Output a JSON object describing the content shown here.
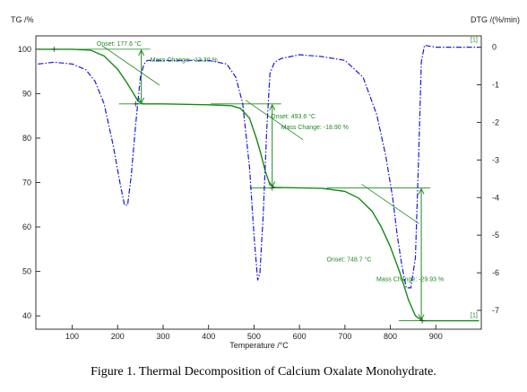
{
  "caption": "Figure 1. Thermal Decomposition of Calcium Oxalate Monohydrate.",
  "colors": {
    "tg": "#138a13",
    "dtg": "#1a1ad8",
    "annotation": "#1f8a1f",
    "frame": "#333333"
  },
  "chart_data": {
    "type": "line",
    "xlabel": "Temperature /°C",
    "ylabel_left": "TG /%",
    "ylabel_right": "DTG /(%/min)",
    "xlim": [
      20,
      1000
    ],
    "ylim_left": [
      37,
      103
    ],
    "ylim_right": [
      -7.5,
      0.3
    ],
    "x_ticks": [
      100,
      200,
      300,
      400,
      500,
      600,
      700,
      800,
      900
    ],
    "y_ticks_left": [
      40,
      50,
      60,
      70,
      80,
      90,
      100
    ],
    "y_ticks_right": [
      0,
      -1,
      -2,
      -3,
      -4,
      -5,
      -6,
      -7
    ],
    "grid": false,
    "series": [
      {
        "axis": "left",
        "style": "solid",
        "x": [
          25,
          100,
          140,
          170,
          200,
          220,
          235,
          245,
          255,
          300,
          400,
          450,
          470,
          490,
          505,
          515,
          525,
          535,
          545,
          600,
          650,
          700,
          730,
          760,
          780,
          800,
          820,
          840,
          855,
          870,
          950,
          995
        ],
        "values": [
          100,
          100,
          99.8,
          98.5,
          95.5,
          92.5,
          90,
          88.3,
          87.7,
          87.7,
          87.5,
          87.3,
          86.7,
          84.5,
          80,
          76.5,
          72.5,
          69.5,
          68.9,
          68.8,
          68.7,
          68,
          66.5,
          63.5,
          60,
          55.5,
          50,
          43.5,
          40,
          38.9,
          38.9,
          38.9
        ]
      },
      {
        "axis": "right",
        "style": "dash-dot",
        "x": [
          25,
          60,
          100,
          130,
          150,
          170,
          190,
          205,
          215,
          222,
          230,
          240,
          250,
          258,
          265,
          300,
          400,
          440,
          460,
          475,
          490,
          500,
          508,
          513,
          520,
          528,
          535,
          545,
          560,
          600,
          650,
          700,
          740,
          770,
          790,
          805,
          815,
          825,
          835,
          845,
          855,
          862,
          868,
          875,
          900,
          950,
          995
        ],
        "values": [
          -0.45,
          -0.4,
          -0.45,
          -0.6,
          -0.9,
          -1.5,
          -2.6,
          -3.6,
          -4.2,
          -4.2,
          -3.4,
          -2.0,
          -0.8,
          -0.45,
          -0.35,
          -0.35,
          -0.35,
          -0.45,
          -0.8,
          -1.5,
          -3.2,
          -5.0,
          -6.2,
          -6.0,
          -4.5,
          -2.2,
          -0.7,
          -0.4,
          -0.3,
          -0.2,
          -0.25,
          -0.35,
          -0.8,
          -1.8,
          -2.9,
          -4.0,
          -5.0,
          -5.8,
          -6.4,
          -6.4,
          -5.6,
          -3.0,
          -0.4,
          0.05,
          0.0,
          0.0,
          0.0
        ]
      }
    ],
    "annotations": [
      {
        "onset_label": "Onset: 177.6 °C",
        "mass_label": "Mass Change: -12.30 %",
        "onset_x": 177.6,
        "arrow_x": 252,
        "tg_from": 100,
        "tg_to": 87.7
      },
      {
        "onset_label": "Onset: 493.6 °C",
        "mass_label": "Mass Change: -18.90 %",
        "onset_x": 493.6,
        "arrow_x": 540,
        "tg_from": 87.7,
        "tg_to": 68.8
      },
      {
        "onset_label": "Onset: 748.7 °C",
        "mass_label": "Mass Change: -29.93 %",
        "onset_x": 748.7,
        "arrow_x": 868,
        "tg_from": 68.8,
        "tg_to": 38.9
      }
    ],
    "curve_tags": [
      "[1]",
      "[1]"
    ]
  }
}
